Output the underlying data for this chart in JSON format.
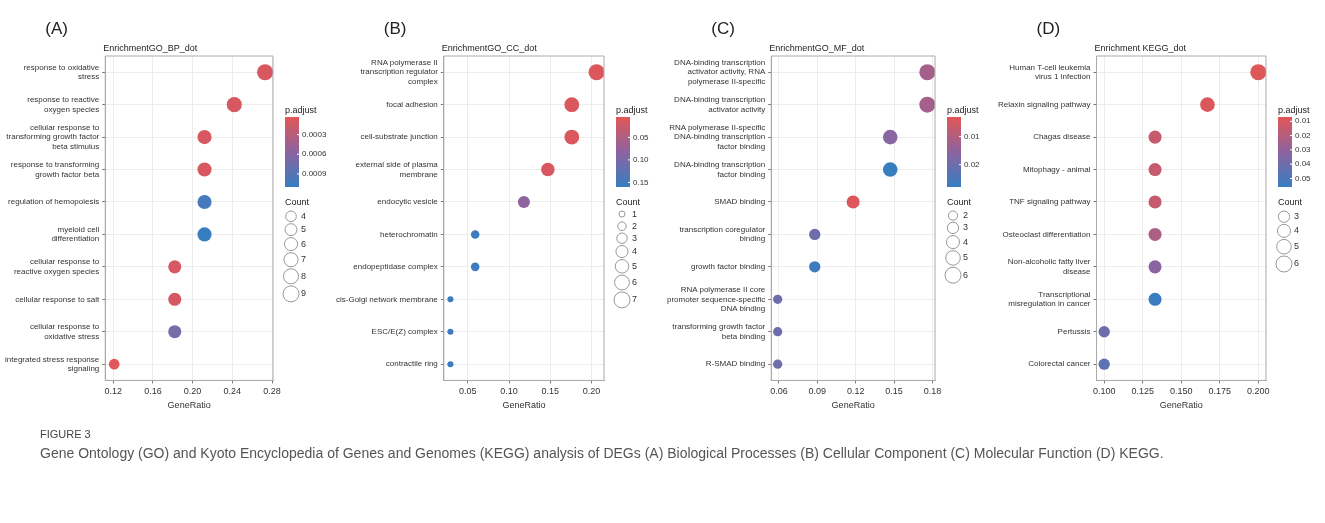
{
  "chart_data": [
    {
      "type": "bubble",
      "orientation": "horizontal",
      "title": "EnrichmentGO_BP_dot",
      "xlabel": "GeneRatio",
      "clabel": "p.adjust",
      "legend_title": "Count",
      "annotations": [
        "(A)",
        "FIGURE 3",
        "Gene Ontology (GO) and Kyoto Encyclopedia of Genes and Genomes (KEGG) analysis of DEGs (A) Biological Processes (B) Cellular Component (C) Molecular Function (D) KEGG."
      ],
      "categories": [
        "response to oxidative stress",
        "response to reactive oxygen species",
        "cellular response to transforming growth factor beta stimulus",
        "response to transforming growth factor beta",
        "regulation of hemopoiesis",
        "myeloid cell differentiation",
        "cellular response to reactive oxygen species",
        "cellular response to salt",
        "cellular response to oxidative stress",
        "integrated stress response signaling"
      ],
      "values": [
        0.273,
        0.242,
        0.212,
        0.212,
        0.212,
        0.212,
        0.182,
        0.182,
        0.182,
        0.121
      ],
      "sizes": [
        9,
        8,
        7,
        7,
        7,
        7,
        6,
        6,
        6,
        4
      ],
      "size_legend": [
        4,
        5,
        6,
        7,
        8,
        9
      ],
      "cvalues": [
        0.0001,
        0.0001,
        0.0001,
        0.0001,
        0.001,
        0.0011,
        0.0001,
        0.00012,
        0.0007,
        5e-05
      ],
      "clim": [
        3e-05,
        0.0011
      ],
      "cticks": [
        0.0003,
        0.0006,
        0.0009
      ],
      "xlim": [
        0.112,
        0.281
      ],
      "xticks": [
        0.12,
        0.16,
        {
          "value": 0.2,
          "label": "0.20"
        },
        0.24,
        0.28
      ],
      "grid": true
    },
    {
      "type": "bubble",
      "orientation": "horizontal",
      "title": "EnrichmentGO_CC_dot",
      "xlabel": "GeneRatio",
      "clabel": "p.adjust",
      "legend_title": "Count",
      "annotations": [
        "(B)"
      ],
      "categories": [
        "RNA polymerase II transcription regulator complex",
        "focal adhesion",
        "cell-substrate junction",
        "external side of plasma membrane",
        "endocytic vesicle",
        "heterochromatin",
        "endopeptidase complex",
        "cis-Golgi network membrane",
        "ESC/E(Z) complex",
        "contractile ring"
      ],
      "values": [
        0.206,
        0.176,
        0.176,
        0.147,
        0.118,
        0.059,
        0.059,
        0.029,
        0.029,
        0.029
      ],
      "sizes": [
        7,
        6,
        6,
        5,
        4,
        2,
        2,
        1,
        1,
        1
      ],
      "size_legend": [
        1,
        2,
        3,
        4,
        5,
        6,
        7
      ],
      "cvalues": [
        0.01,
        0.012,
        0.012,
        0.015,
        0.08,
        0.155,
        0.155,
        0.155,
        0.155,
        0.155
      ],
      "clim": [
        0.005,
        0.16
      ],
      "cticks": [
        0.05,
        {
          "value": 0.1,
          "label": "0.10"
        },
        0.15
      ],
      "xlim": [
        0.021,
        0.215
      ],
      "xticks": [
        0.05,
        {
          "value": 0.1,
          "label": "0.10"
        },
        0.15,
        {
          "value": 0.2,
          "label": "0.20"
        }
      ],
      "grid": true
    },
    {
      "type": "bubble",
      "orientation": "horizontal",
      "title": "EnrichmentGO_MF_dot",
      "xlabel": "GeneRatio",
      "clabel": "p.adjust",
      "legend_title": "Count",
      "annotations": [
        "(C)"
      ],
      "categories": [
        "DNA-binding transcription activator activity, RNA polymerase II-specific",
        "DNA-binding transcription activator activity",
        "RNA polymerase II-specific DNA-binding transcription factor binding",
        "DNA-binding transcription factor binding",
        "SMAD binding",
        "transcription coregulator binding",
        "growth factor binding",
        "RNA polymerase II core promoter sequence-specific DNA binding",
        "transforming growth factor beta binding",
        "R-SMAD binding"
      ],
      "values": [
        0.176,
        0.176,
        0.147,
        0.147,
        0.118,
        0.088,
        0.088,
        0.059,
        0.059,
        0.059
      ],
      "sizes": [
        6,
        6,
        5,
        5,
        4,
        3,
        3,
        2,
        2,
        2
      ],
      "size_legend": [
        2,
        3,
        4,
        5,
        6
      ],
      "cvalues": [
        0.012,
        0.012,
        0.016,
        0.028,
        0.004,
        0.02,
        0.027,
        0.02,
        0.02,
        0.02
      ],
      "clim": [
        0.003,
        0.028
      ],
      "cticks": [
        0.01,
        0.02
      ],
      "xlim": [
        0.054,
        0.182
      ],
      "xticks": [
        0.06,
        0.09,
        0.12,
        0.15,
        0.18
      ],
      "grid": true
    },
    {
      "type": "bubble",
      "orientation": "horizontal",
      "title": "Enrichment KEGG_dot",
      "xlabel": "GeneRatio",
      "clabel": "p.adjust",
      "legend_title": "Count",
      "annotations": [
        "(D)"
      ],
      "categories": [
        "Human T-cell leukemia virus 1 infection",
        "Relaxin signaling pathway",
        "Chagas disease",
        "Mitophagy - animal",
        "TNF signaling pathway",
        "Osteoclast differentiation",
        "Non-alcoholic fatty liver disease",
        "Transcriptional misregulation in cancer",
        "Pertussis",
        "Colorectal cancer"
      ],
      "values": [
        0.2,
        0.167,
        0.133,
        0.133,
        0.133,
        0.133,
        0.133,
        0.133,
        0.1,
        0.1
      ],
      "sizes": [
        6,
        5,
        4,
        4,
        4,
        4,
        4,
        4,
        3,
        3
      ],
      "size_legend": [
        3,
        4,
        5,
        6
      ],
      "cvalues": [
        0.008,
        0.009,
        0.015,
        0.015,
        0.015,
        0.022,
        0.032,
        0.055,
        0.04,
        0.045
      ],
      "clim": [
        0.007,
        0.056
      ],
      "cticks": [
        0.01,
        0.02,
        0.03,
        0.04,
        0.05
      ],
      "xlim": [
        0.095,
        0.205
      ],
      "xticks": [
        {
          "value": 0.1,
          "label": "0.100"
        },
        0.125,
        {
          "value": 0.15,
          "label": "0.150"
        },
        0.175,
        {
          "value": 0.2,
          "label": "0.200"
        }
      ],
      "grid": true
    }
  ]
}
